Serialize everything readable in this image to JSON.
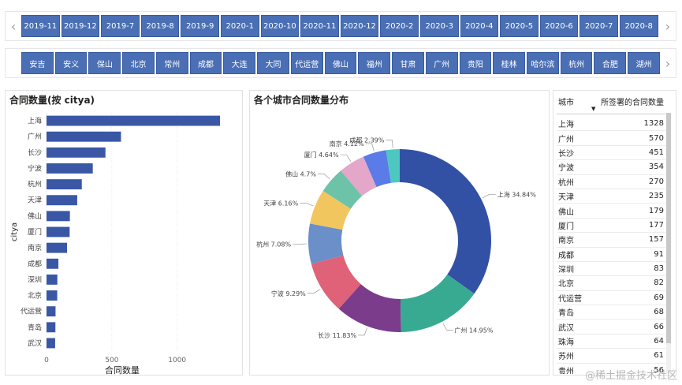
{
  "date_slicer": {
    "items": [
      "2019-11",
      "2019-12",
      "2019-7",
      "2019-8",
      "2019-9",
      "2020-1",
      "2020-10",
      "2020-11",
      "2020-12",
      "2020-2",
      "2020-3",
      "2020-4",
      "2020-5",
      "2020-6",
      "2020-7",
      "2020-8"
    ]
  },
  "city_slicer": {
    "items": [
      "安吉",
      "安义",
      "保山",
      "北京",
      "常州",
      "成都",
      "大连",
      "大同",
      "代运营",
      "佛山",
      "福州",
      "甘肃",
      "广州",
      "贵阳",
      "桂林",
      "哈尔滨",
      "杭州",
      "合肥",
      "湖州"
    ]
  },
  "icons": {
    "left": "‹",
    "right": "›",
    "sort": "▼"
  },
  "bar_chart": {
    "title": "合同数量(按 citya)",
    "ylabel": "citya",
    "xlabel": "合同数量"
  },
  "donut_chart": {
    "title": "各个城市合同数量分布"
  },
  "table": {
    "col_city": "城市",
    "col_count": "所签署的合同数量",
    "rows": [
      {
        "city": "上海",
        "count": "1328"
      },
      {
        "city": "广州",
        "count": "570"
      },
      {
        "city": "长沙",
        "count": "451"
      },
      {
        "city": "宁波",
        "count": "354"
      },
      {
        "city": "杭州",
        "count": "270"
      },
      {
        "city": "天津",
        "count": "235"
      },
      {
        "city": "佛山",
        "count": "179"
      },
      {
        "city": "厦门",
        "count": "177"
      },
      {
        "city": "南京",
        "count": "157"
      },
      {
        "city": "成都",
        "count": "91"
      },
      {
        "city": "深圳",
        "count": "83"
      },
      {
        "city": "北京",
        "count": "82"
      },
      {
        "city": "代运营",
        "count": "69"
      },
      {
        "city": "青岛",
        "count": "68"
      },
      {
        "city": "武汉",
        "count": "66"
      },
      {
        "city": "珠海",
        "count": "64"
      },
      {
        "city": "苏州",
        "count": "61"
      },
      {
        "city": "贵州",
        "count": "56"
      }
    ]
  },
  "watermark": "@稀土掘金技术社区",
  "colors": {
    "chip": "#4a6fb5",
    "bar": "#3a57a6",
    "donut": [
      "#3251a5",
      "#38aa92",
      "#7b3c8c",
      "#df6278",
      "#6b8fc8",
      "#f2c65e",
      "#6dc3a7",
      "#e4a6c9",
      "#5a7be8",
      "#4fc7c1"
    ]
  },
  "chart_data": [
    {
      "type": "bar",
      "orientation": "horizontal",
      "title": "合同数量(按 citya)",
      "xlabel": "合同数量",
      "ylabel": "citya",
      "categories": [
        "上海",
        "广州",
        "长沙",
        "宁波",
        "杭州",
        "天津",
        "佛山",
        "厦门",
        "南京",
        "成都",
        "深圳",
        "北京",
        "代运营",
        "青岛",
        "武汉"
      ],
      "values": [
        1328,
        570,
        451,
        354,
        270,
        235,
        179,
        177,
        157,
        91,
        83,
        82,
        69,
        68,
        66
      ],
      "xlim": [
        0,
        1400
      ],
      "xticks": [
        0,
        500,
        1000
      ],
      "grid": true
    },
    {
      "type": "pie",
      "variant": "donut",
      "title": "各个城市合同数量分布",
      "labels": [
        "上海",
        "广州",
        "长沙",
        "宁波",
        "杭州",
        "天津",
        "佛山",
        "厦门",
        "南京",
        "成都"
      ],
      "values": [
        34.84,
        14.95,
        11.83,
        9.29,
        7.08,
        6.16,
        4.7,
        4.64,
        4.12,
        2.39
      ],
      "value_labels": [
        "34.84%",
        "14.95%",
        "11.83%",
        "9.29%",
        "7.08%",
        "6.16%",
        "4.7%",
        "4.64%",
        "4.12%",
        "2.39%"
      ]
    }
  ]
}
